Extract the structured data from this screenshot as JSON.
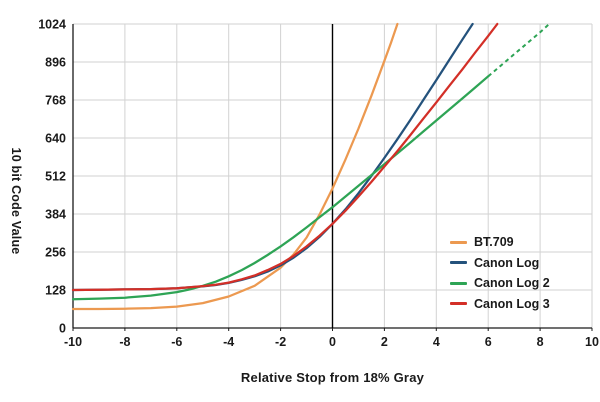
{
  "chart_data": {
    "type": "line",
    "title": "",
    "xlabel": "Relative Stop from 18% Gray",
    "ylabel": "10 bit Code Value",
    "xlim": [
      -10,
      10
    ],
    "ylim": [
      0,
      1024
    ],
    "x_ticks": [
      -10,
      -8,
      -6,
      -4,
      -2,
      0,
      2,
      4,
      6,
      8,
      10
    ],
    "y_ticks": [
      0,
      128,
      256,
      384,
      512,
      640,
      768,
      896,
      1024
    ],
    "grid": true,
    "zero_line_x": 0,
    "legend_position": "inside-right",
    "colors": {
      "grid": "#d2d2d2",
      "axis": "#1a1a1a",
      "zero_line": "#000000"
    },
    "series": [
      {
        "name": "BT.709",
        "color": "#EC9950",
        "points": [
          [
            -10,
            64
          ],
          [
            -9,
            64
          ],
          [
            -8,
            65
          ],
          [
            -7,
            67
          ],
          [
            -6,
            72
          ],
          [
            -5,
            84
          ],
          [
            -4,
            106
          ],
          [
            -3,
            142
          ],
          [
            -2,
            203
          ],
          [
            -1.5,
            248
          ],
          [
            -1,
            305
          ],
          [
            -0.5,
            382
          ],
          [
            0,
            470
          ],
          [
            0.5,
            568
          ],
          [
            1,
            672
          ],
          [
            1.5,
            782
          ],
          [
            2,
            900
          ],
          [
            2.25,
            960
          ],
          [
            2.5,
            1024
          ]
        ]
      },
      {
        "name": "Canon Log",
        "color": "#24527C",
        "points": [
          [
            -10,
            128
          ],
          [
            -9,
            129
          ],
          [
            -8,
            130
          ],
          [
            -7,
            131
          ],
          [
            -6,
            134
          ],
          [
            -5.5,
            137
          ],
          [
            -5,
            140
          ],
          [
            -4.5,
            145
          ],
          [
            -4,
            152
          ],
          [
            -3.5,
            162
          ],
          [
            -3,
            174
          ],
          [
            -2.5,
            190
          ],
          [
            -2,
            211
          ],
          [
            -1.5,
            237
          ],
          [
            -1,
            269
          ],
          [
            -0.5,
            307
          ],
          [
            0,
            351
          ],
          [
            0.5,
            400
          ],
          [
            1,
            454
          ],
          [
            1.5,
            512
          ],
          [
            2,
            573
          ],
          [
            2.5,
            636
          ],
          [
            3,
            701
          ],
          [
            3.5,
            768
          ],
          [
            4,
            835
          ],
          [
            4.5,
            903
          ],
          [
            5,
            971
          ],
          [
            5.4,
            1024
          ]
        ]
      },
      {
        "name": "Canon Log 2",
        "color": "#2EA455",
        "dash_from": 6,
        "points": [
          [
            -10,
            97
          ],
          [
            -9,
            99
          ],
          [
            -8,
            102
          ],
          [
            -7,
            109
          ],
          [
            -6,
            121
          ],
          [
            -5.5,
            130
          ],
          [
            -5,
            142
          ],
          [
            -4.5,
            156
          ],
          [
            -4,
            174
          ],
          [
            -3.5,
            195
          ],
          [
            -3,
            219
          ],
          [
            -2.5,
            246
          ],
          [
            -2,
            275
          ],
          [
            -1.5,
            306
          ],
          [
            -1,
            339
          ],
          [
            -0.5,
            373
          ],
          [
            0,
            407
          ],
          [
            0.5,
            443
          ],
          [
            1,
            479
          ],
          [
            1.5,
            515
          ],
          [
            2,
            552
          ],
          [
            2.5,
            588
          ],
          [
            3,
            625
          ],
          [
            3.5,
            662
          ],
          [
            4,
            699
          ],
          [
            4.5,
            736
          ],
          [
            5,
            773
          ],
          [
            5.5,
            810
          ],
          [
            6,
            848
          ],
          [
            6.5,
            885
          ],
          [
            7,
            922
          ],
          [
            7.5,
            959
          ],
          [
            8,
            996
          ],
          [
            8.35,
            1024
          ]
        ]
      },
      {
        "name": "Canon Log 3",
        "color": "#D32F27",
        "points": [
          [
            -10,
            128
          ],
          [
            -9,
            129
          ],
          [
            -8,
            130
          ],
          [
            -7,
            131
          ],
          [
            -6,
            134
          ],
          [
            -5.5,
            137
          ],
          [
            -5,
            141
          ],
          [
            -4.5,
            146
          ],
          [
            -4,
            153
          ],
          [
            -3.5,
            164
          ],
          [
            -3,
            177
          ],
          [
            -2.5,
            195
          ],
          [
            -2,
            216
          ],
          [
            -1.5,
            243
          ],
          [
            -1,
            275
          ],
          [
            -0.5,
            311
          ],
          [
            0,
            351
          ],
          [
            0.5,
            395
          ],
          [
            1,
            443
          ],
          [
            1.5,
            492
          ],
          [
            2,
            544
          ],
          [
            2.5,
            596
          ],
          [
            3,
            650
          ],
          [
            3.5,
            705
          ],
          [
            4,
            760
          ],
          [
            4.5,
            816
          ],
          [
            5,
            871
          ],
          [
            5.5,
            928
          ],
          [
            6,
            984
          ],
          [
            6.35,
            1024
          ]
        ]
      }
    ]
  }
}
